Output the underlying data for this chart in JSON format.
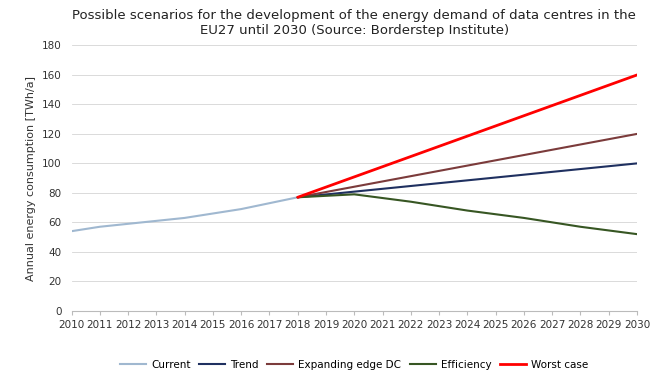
{
  "title": "Possible scenarios for the development of the energy demand of data centres in the\nEU27 until 2030 (Source: Borderstep Institute)",
  "ylabel": "Annual energy consumption [TWh/a]",
  "xlim": [
    2010,
    2030
  ],
  "ylim": [
    0,
    180
  ],
  "yticks": [
    0,
    20,
    40,
    60,
    80,
    100,
    120,
    140,
    160,
    180
  ],
  "xticks": [
    2010,
    2011,
    2012,
    2013,
    2014,
    2015,
    2016,
    2017,
    2018,
    2019,
    2020,
    2021,
    2022,
    2023,
    2024,
    2025,
    2026,
    2027,
    2028,
    2029,
    2030
  ],
  "series": {
    "Current": {
      "x": [
        2010,
        2011,
        2012,
        2013,
        2014,
        2015,
        2016,
        2017,
        2018
      ],
      "y": [
        54,
        57,
        59,
        61,
        63,
        66,
        69,
        73,
        77
      ],
      "color": "#a0b8d0",
      "linewidth": 1.5,
      "linestyle": "-"
    },
    "Trend": {
      "x": [
        2018,
        2030
      ],
      "y": [
        77,
        100
      ],
      "color": "#1f3060",
      "linewidth": 1.5,
      "linestyle": "-"
    },
    "Expanding edge DC": {
      "x": [
        2018,
        2030
      ],
      "y": [
        77,
        120
      ],
      "color": "#7b3b3b",
      "linewidth": 1.5,
      "linestyle": "-"
    },
    "Efficiency": {
      "x": [
        2018,
        2020,
        2022,
        2024,
        2026,
        2028,
        2030
      ],
      "y": [
        77,
        79,
        74,
        68,
        63,
        57,
        52
      ],
      "color": "#375623",
      "linewidth": 1.5,
      "linestyle": "-"
    },
    "Worst case": {
      "x": [
        2018,
        2030
      ],
      "y": [
        77,
        160
      ],
      "color": "#ff0000",
      "linewidth": 2.0,
      "linestyle": "-"
    }
  },
  "legend_order": [
    "Current",
    "Trend",
    "Expanding edge DC",
    "Efficiency",
    "Worst case"
  ],
  "background_color": "#ffffff",
  "grid_color": "#d5d5d5",
  "title_fontsize": 9.5,
  "label_fontsize": 8,
  "tick_fontsize": 7.5,
  "legend_fontsize": 7.5
}
